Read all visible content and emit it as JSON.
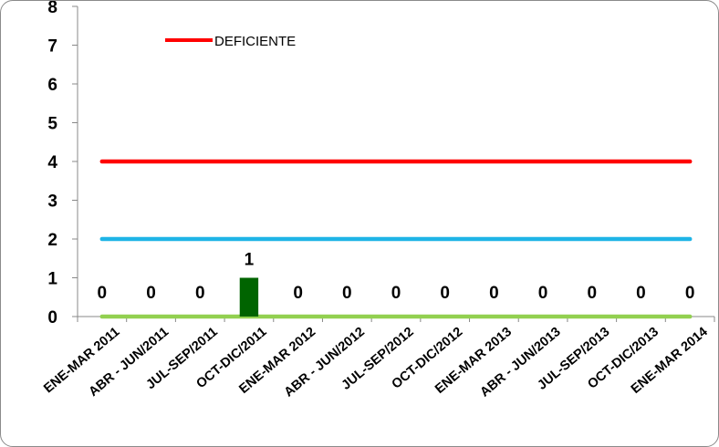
{
  "chart_data": {
    "type": "bar",
    "categories": [
      "ENE-MAR 2011",
      "ABR - JUN/2011",
      "JUL-SEP/2011",
      "OCT-DIC/2011",
      "ENE-MAR 2012",
      "ABR - JUN/2012",
      "JUL-SEP/2012",
      "OCT-DIC/2012",
      "ENE-MAR 2013",
      "ABR - JUN/2013",
      "JUL-SEP/2013",
      "OCT-DIC/2013",
      "ENE-MAR 2014"
    ],
    "series": [
      {
        "type": "bar",
        "values": [
          0,
          0,
          0,
          1,
          0,
          0,
          0,
          0,
          0,
          0,
          0,
          0,
          0
        ],
        "labels": [
          "0",
          "0",
          "0",
          "1",
          "0",
          "0",
          "0",
          "0",
          "0",
          "0",
          "0",
          "0",
          "0"
        ],
        "color": "#006400"
      },
      {
        "name": "DEFICIENTE",
        "type": "line",
        "values": [
          4,
          4,
          4,
          4,
          4,
          4,
          4,
          4,
          4,
          4,
          4,
          4,
          4
        ],
        "color": "#ff0000"
      },
      {
        "type": "line",
        "values": [
          2,
          2,
          2,
          2,
          2,
          2,
          2,
          2,
          2,
          2,
          2,
          2,
          2
        ],
        "color": "#1eb4e6"
      },
      {
        "type": "line",
        "values": [
          0,
          0,
          0,
          0,
          0,
          0,
          0,
          0,
          0,
          0,
          0,
          0,
          0
        ],
        "color": "#92d050"
      }
    ],
    "yticks": [
      "0",
      "1",
      "2",
      "3",
      "4",
      "5",
      "6",
      "7",
      "8"
    ],
    "ylim": [
      0,
      8
    ],
    "title": "",
    "xlabel": "",
    "ylabel": "",
    "grid": false,
    "legend_position": "top-left"
  }
}
